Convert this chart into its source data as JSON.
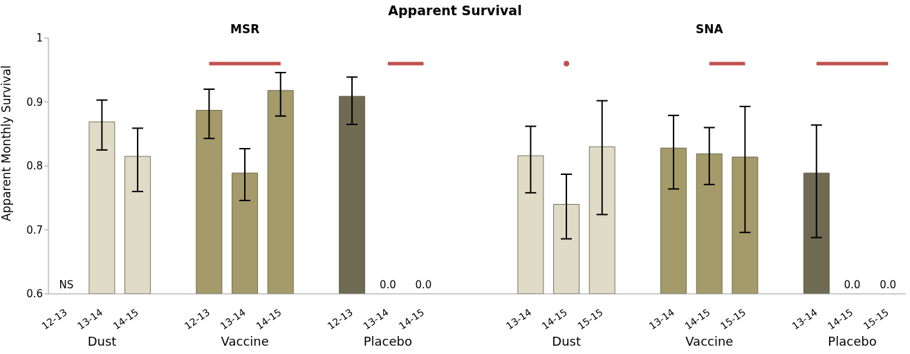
{
  "chart_data": {
    "type": "bar",
    "title": "Apparent Survival",
    "ylabel": "Apparent Monthly Survival",
    "annotations": [
      "MSR",
      "SNA",
      "Dust",
      "Vaccine",
      "Placebo",
      "Dust",
      "Vaccine",
      "Placebo"
    ],
    "categories": [
      "12-13",
      "13-14",
      "14-15",
      null,
      "12-13",
      "13-14",
      "14-15",
      null,
      "12-13",
      "13-14",
      "14-15",
      null,
      null,
      "13-14",
      "14-15",
      "15-15",
      null,
      "13-14",
      "14-15",
      "15-15",
      null,
      "13-14",
      "14-15",
      "15-15"
    ],
    "ylim": [
      0.6,
      1
    ],
    "yticks": [
      0.6,
      0.7,
      0.8,
      0.9,
      1
    ],
    "grid": false,
    "legend": false,
    "series": [
      {
        "type": "bar",
        "values": [
          null,
          0.869,
          0.815,
          null,
          0.887,
          0.789,
          0.918,
          null,
          0.909,
          null,
          null,
          null,
          null,
          0.816,
          0.74,
          0.83,
          null,
          0.828,
          0.819,
          0.814,
          null,
          0.789,
          null,
          null
        ],
        "colors": [
          "#e0dbc6",
          "#e0dbc6",
          "#e0dbc6",
          null,
          "#a59b6a",
          "#a59b6a",
          "#a59b6a",
          null,
          "#6f6a52",
          "#6f6a52",
          "#6f6a52",
          null,
          null,
          "#e0dbc6",
          "#e0dbc6",
          "#e0dbc6",
          null,
          "#a59b6a",
          "#a59b6a",
          "#a59b6a",
          null,
          "#6f6a52",
          "#6f6a52",
          "#6f6a52"
        ],
        "errors": [
          null,
          [
            0.825,
            0.903
          ],
          [
            0.76,
            0.859
          ],
          null,
          [
            0.843,
            0.92
          ],
          [
            0.746,
            0.827
          ],
          [
            0.878,
            0.946
          ],
          null,
          [
            0.865,
            0.939
          ],
          null,
          null,
          null,
          null,
          [
            0.758,
            0.862
          ],
          [
            0.686,
            0.787
          ],
          [
            0.724,
            0.902
          ],
          null,
          [
            0.764,
            0.879
          ],
          [
            0.771,
            0.86
          ],
          [
            0.696,
            0.893
          ],
          null,
          [
            0.688,
            0.864
          ],
          null,
          null
        ],
        "value_labels": [
          "NS",
          null,
          null,
          null,
          null,
          null,
          null,
          null,
          null,
          "0.0",
          "0.0",
          null,
          null,
          null,
          null,
          null,
          null,
          null,
          null,
          null,
          null,
          null,
          "0.0",
          "0.0"
        ]
      },
      {
        "type": "line",
        "color": "#c0504d",
        "values": [
          null,
          null,
          null,
          null,
          0.96,
          0.96,
          0.96,
          null,
          null,
          0.96,
          0.96,
          null,
          null,
          null,
          0.96,
          null,
          null,
          null,
          0.96,
          0.96,
          null,
          0.96,
          0.96,
          0.96
        ]
      }
    ]
  }
}
